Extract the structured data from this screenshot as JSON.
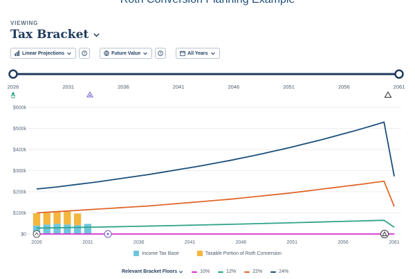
{
  "header": {
    "title": "Roth Conversion Planning Example",
    "viewing_label": "VIEWING",
    "view_value": "Tax Bracket"
  },
  "controls": {
    "projection": "Linear Projections",
    "value_mode": "Future Value",
    "years": "All Years"
  },
  "timeline": {
    "ticks": [
      "2026",
      "2031",
      "2036",
      "2041",
      "2046",
      "2051",
      "2056",
      "2061"
    ]
  },
  "colors": {
    "navy": "#1a4d7a",
    "orange": "#e0672a",
    "green": "#2ea387",
    "magenta": "#d62dcf",
    "bar_base": "#6ec6de",
    "bar_roth": "#f3b63f"
  },
  "chart_data": {
    "type": "line",
    "title": "",
    "xlabel": "",
    "ylabel": "",
    "x": [
      2026,
      2027,
      2028,
      2029,
      2030,
      2031,
      2032,
      2033,
      2034,
      2035,
      2036,
      2037,
      2038,
      2039,
      2040,
      2041,
      2042,
      2043,
      2044,
      2045,
      2046,
      2047,
      2048,
      2049,
      2050,
      2051,
      2052,
      2053,
      2054,
      2055,
      2056,
      2057,
      2058,
      2059,
      2060,
      2061
    ],
    "xlim": [
      2026,
      2061
    ],
    "ylim": [
      0,
      600000
    ],
    "y_ticks": [
      0,
      100000,
      200000,
      300000,
      400000,
      500000,
      600000
    ],
    "y_tick_labels": [
      "$0",
      "$100k",
      "$200k",
      "$300k",
      "$400k",
      "$500k",
      "$600k"
    ],
    "x_tick_labels": [
      "2026",
      "2031",
      "2036",
      "2041",
      "2046",
      "2051",
      "2056",
      "2061"
    ],
    "series": [
      {
        "name": "24%",
        "color": "#1a4d7a",
        "values": [
          213000,
          218000,
          223000,
          229000,
          235000,
          241000,
          247000,
          254000,
          261000,
          268000,
          275000,
          282000,
          290000,
          298000,
          306000,
          314000,
          322000,
          331000,
          340000,
          349000,
          359000,
          369000,
          379000,
          390000,
          401000,
          412000,
          424000,
          436000,
          448000,
          461000,
          474000,
          487000,
          501000,
          515000,
          530000,
          273000
        ]
      },
      {
        "name": "22%",
        "color": "#e0672a",
        "values": [
          100000,
          103000,
          106000,
          109000,
          112000,
          115000,
          118000,
          121000,
          124000,
          127000,
          130000,
          133000,
          137000,
          141000,
          145000,
          149000,
          153000,
          157000,
          161000,
          165000,
          170000,
          175000,
          180000,
          185000,
          190000,
          195000,
          201000,
          207000,
          213000,
          219000,
          225000,
          231000,
          237000,
          244000,
          250000,
          130000
        ]
      },
      {
        "name": "12%",
        "color": "#2ea387",
        "values": [
          28000,
          28800,
          29600,
          30400,
          31200,
          32000,
          32900,
          33800,
          34700,
          35600,
          36500,
          37500,
          38500,
          39500,
          40500,
          41600,
          42700,
          43800,
          44900,
          46000,
          47200,
          48400,
          49600,
          50800,
          52000,
          53300,
          54600,
          55900,
          57200,
          58500,
          59800,
          61100,
          62400,
          63700,
          65000,
          32000
        ]
      },
      {
        "name": "10%",
        "color": "#d62dcf",
        "values": [
          0,
          0,
          0,
          0,
          0,
          0,
          0,
          0,
          0,
          0,
          0,
          0,
          0,
          0,
          0,
          0,
          0,
          0,
          0,
          0,
          0,
          0,
          0,
          0,
          0,
          0,
          0,
          0,
          0,
          0,
          0,
          0,
          0,
          0,
          0,
          0
        ]
      }
    ],
    "bars": {
      "years": [
        2026,
        2027,
        2028,
        2029,
        2030,
        2031
      ],
      "income_tax_base": [
        40000,
        45000,
        48000,
        45000,
        42000,
        48000
      ],
      "roth_conversion": [
        58000,
        55000,
        58000,
        62000,
        55000,
        0
      ]
    },
    "legend": [
      "Income Tax Base",
      "Taxable Portion of Roth Conversion"
    ]
  },
  "bottom_legend": {
    "bracket_button": "Relevant Bracket Floors",
    "items": [
      "10%",
      "12%",
      "22%",
      "24%"
    ]
  }
}
